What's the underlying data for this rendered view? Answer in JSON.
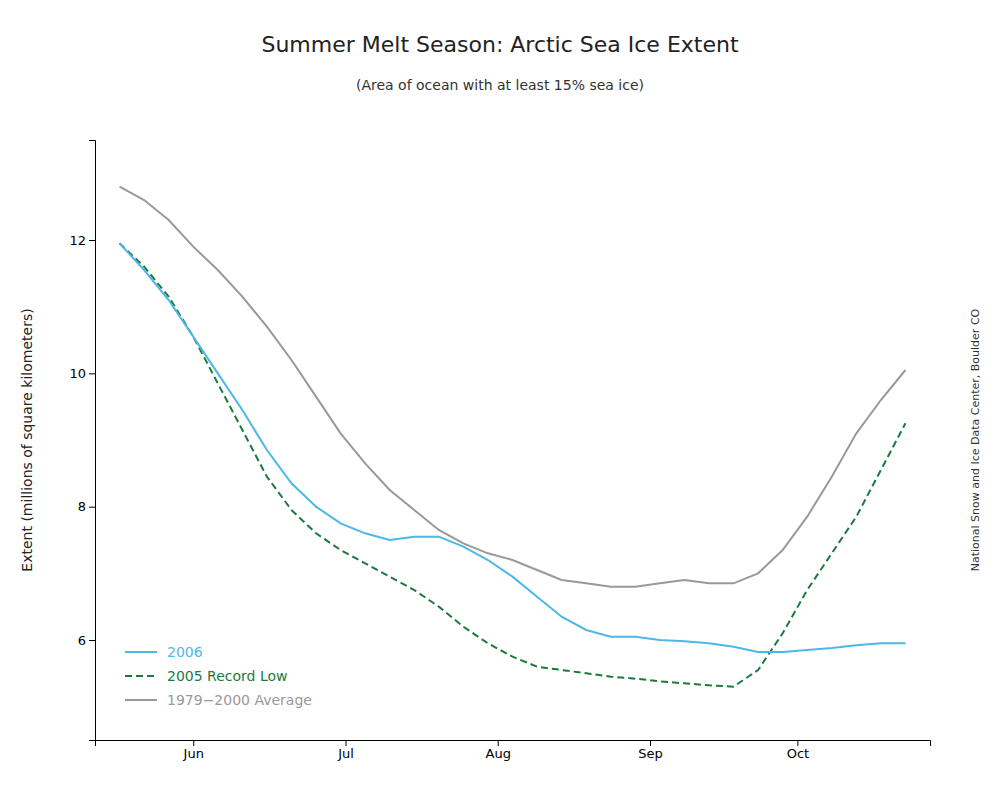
{
  "chart_data": {
    "type": "line",
    "title": "Summer Melt Season: Arctic Sea Ice Extent",
    "subtitle": "(Area of ocean with at least 15% sea ice)",
    "y_label": "Extent (millions of square kilometers)",
    "annotations": [
      "National Snow and Ice Data Center, Boulder CO"
    ],
    "x": [
      0,
      5,
      10,
      15,
      20,
      25,
      30,
      35,
      40,
      45,
      50,
      55,
      60,
      65,
      70,
      75,
      80,
      85,
      90,
      95,
      100,
      105,
      110,
      115,
      120,
      125,
      130,
      135,
      140,
      145,
      150,
      155,
      160
    ],
    "xlim": [
      -5,
      165
    ],
    "xticks": [
      {
        "value": 15,
        "label": "Jun"
      },
      {
        "value": 46,
        "label": "Jul"
      },
      {
        "value": 77,
        "label": "Aug"
      },
      {
        "value": 108,
        "label": "Sep"
      },
      {
        "value": 138,
        "label": "Oct"
      }
    ],
    "ylim": [
      4.5,
      13.5
    ],
    "yticks": [
      6,
      8,
      10,
      12
    ],
    "grid": false,
    "legend": "lower left",
    "series": [
      {
        "name": "1979−2000 Average",
        "color": "#999999",
        "line_style": "solid",
        "values": [
          12.8,
          12.6,
          12.3,
          11.9,
          11.55,
          11.15,
          10.7,
          10.2,
          9.65,
          9.1,
          8.65,
          8.25,
          7.95,
          7.65,
          7.45,
          7.3,
          7.2,
          7.05,
          6.9,
          6.85,
          6.8,
          6.8,
          6.85,
          6.9,
          6.85,
          6.85,
          7.0,
          7.35,
          7.85,
          8.45,
          9.1,
          9.6,
          10.05
        ]
      },
      {
        "name": "2005 Record Low",
        "color": "#1a7a3c",
        "line_style": "dashed",
        "values": [
          11.95,
          11.6,
          11.15,
          10.55,
          9.85,
          9.15,
          8.45,
          7.95,
          7.6,
          7.35,
          7.15,
          6.95,
          6.75,
          6.5,
          6.2,
          5.95,
          5.75,
          5.6,
          5.55,
          5.5,
          5.45,
          5.42,
          5.38,
          5.35,
          5.32,
          5.3,
          5.55,
          6.1,
          6.75,
          7.3,
          7.85,
          8.55,
          9.25
        ]
      },
      {
        "name": "2006",
        "color": "#4db8e8",
        "line_style": "solid",
        "values": [
          11.95,
          11.55,
          11.1,
          10.55,
          10.0,
          9.45,
          8.85,
          8.35,
          8.0,
          7.75,
          7.6,
          7.5,
          7.55,
          7.55,
          7.4,
          7.2,
          6.95,
          6.65,
          6.35,
          6.15,
          6.05,
          6.05,
          6.0,
          5.98,
          5.95,
          5.9,
          5.82,
          5.82,
          5.85,
          5.88,
          5.92,
          5.95,
          5.95
        ]
      }
    ]
  }
}
